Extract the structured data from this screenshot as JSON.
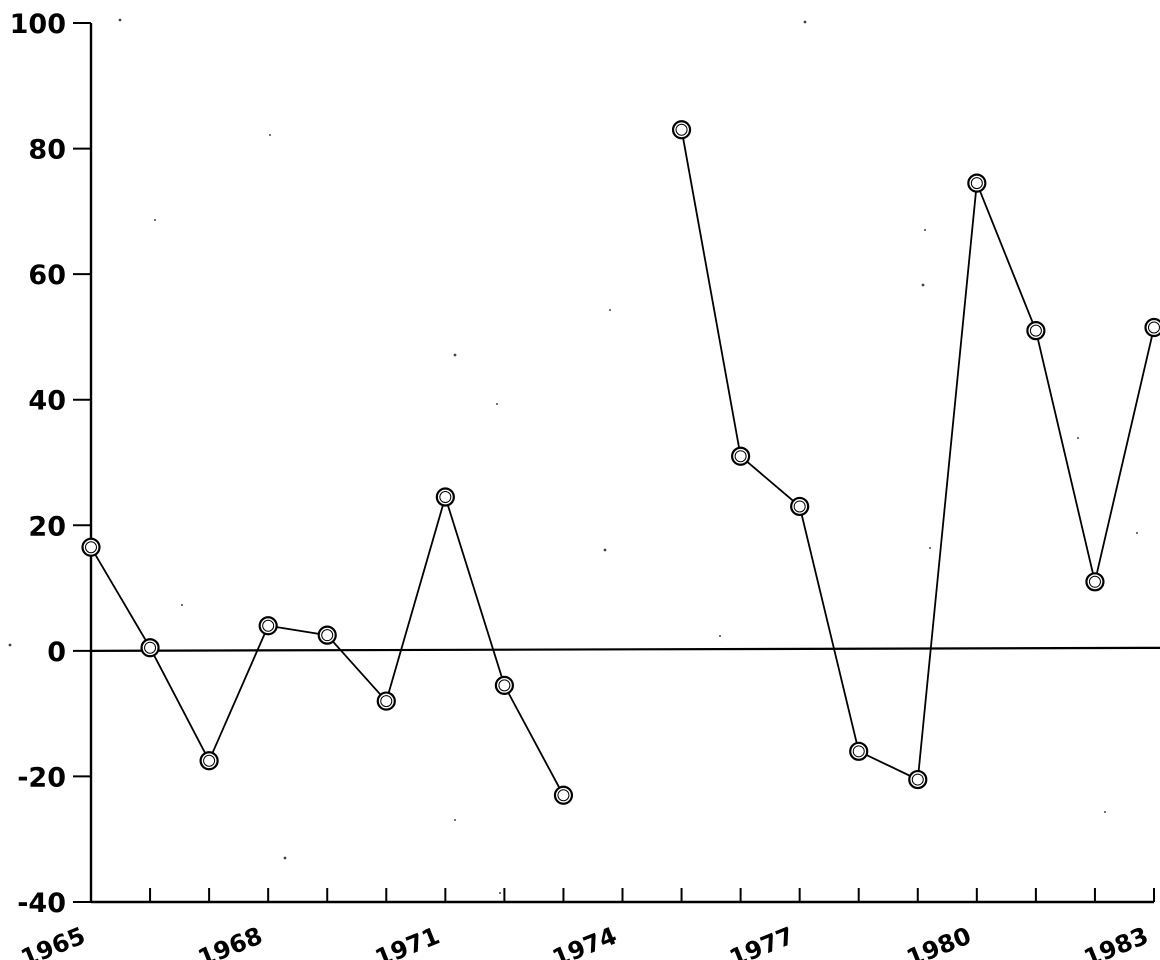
{
  "chart_data": {
    "type": "line",
    "title": "",
    "xlabel": "",
    "ylabel": "",
    "xlim": [
      1965,
      1983
    ],
    "ylim": [
      -40,
      100
    ],
    "x_ticks": [
      1965,
      1966,
      1967,
      1968,
      1969,
      1970,
      1971,
      1972,
      1973,
      1974,
      1975,
      1976,
      1977,
      1978,
      1979,
      1980,
      1981,
      1982,
      1983
    ],
    "x_tick_labels": [
      {
        "x": 1965,
        "label": "1965"
      },
      {
        "x": 1968,
        "label": "1968"
      },
      {
        "x": 1971,
        "label": "1971"
      },
      {
        "x": 1974,
        "label": "1974"
      },
      {
        "x": 1977,
        "label": "1977"
      },
      {
        "x": 1980,
        "label": "1980"
      },
      {
        "x": 1983,
        "label": "1983"
      }
    ],
    "y_ticks": [
      -40,
      -20,
      0,
      20,
      40,
      60,
      80,
      100
    ],
    "y_tick_labels": [
      {
        "y": 100,
        "label": "100"
      },
      {
        "y": 80,
        "label": "80"
      },
      {
        "y": 60,
        "label": "60"
      },
      {
        "y": 40,
        "label": "40"
      },
      {
        "y": 20,
        "label": "20"
      },
      {
        "y": 0,
        "label": "0"
      },
      {
        "y": -20,
        "label": "-20"
      },
      {
        "y": -40,
        "label": "-40"
      }
    ],
    "reference_line_y": 0,
    "grid": false,
    "legend": "none",
    "marker": "open-circle",
    "colors": {
      "line": "#000000",
      "marker_fill": "#ffffff"
    },
    "series": [
      {
        "segments": [
          {
            "x": [
              1965,
              1966,
              1967,
              1968,
              1969,
              1970,
              1971,
              1972,
              1973
            ],
            "y": [
              16.5,
              0.5,
              -17.5,
              4,
              2.5,
              -8,
              24.5,
              -5.5,
              -23
            ]
          },
          {
            "x": [
              1975,
              1976,
              1977,
              1978,
              1979,
              1980,
              1981,
              1982,
              1983
            ],
            "y": [
              83,
              31,
              23,
              -16,
              -20.5,
              74.5,
              51,
              11,
              51.5
            ]
          }
        ]
      }
    ]
  }
}
